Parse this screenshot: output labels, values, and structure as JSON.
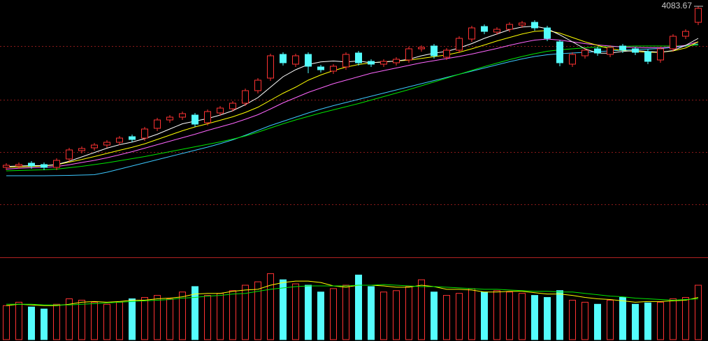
{
  "chart_data": {
    "type": "candlestick",
    "open": [
      3160,
      3168,
      3184,
      3176,
      3160,
      3208,
      3256,
      3272,
      3288,
      3304,
      3336,
      3328,
      3384,
      3432,
      3448,
      3460,
      3416,
      3472,
      3496,
      3528,
      3600,
      3672,
      3808,
      3752,
      3808,
      3736,
      3712,
      3736,
      3816,
      3768,
      3752,
      3760,
      3776,
      3840,
      3856,
      3792,
      3832,
      3896,
      3968,
      3936,
      3952,
      3976,
      3992,
      3960,
      3880,
      3752,
      3800,
      3840,
      3808,
      3856,
      3840,
      3824,
      3776,
      3840,
      3912,
      3992
    ],
    "high": [
      3184,
      3188,
      3196,
      3188,
      3212,
      3272,
      3280,
      3300,
      3316,
      3340,
      3348,
      3392,
      3444,
      3460,
      3480,
      3472,
      3492,
      3512,
      3540,
      3612,
      3672,
      3812,
      3820,
      3812,
      3820,
      3748,
      3752,
      3820,
      3828,
      3780,
      3780,
      3792,
      3852,
      3860,
      3868,
      3844,
      3912,
      3972,
      3980,
      3964,
      3992,
      4000,
      4004,
      3972,
      3892,
      3820,
      3844,
      3852,
      3860,
      3868,
      3852,
      3836,
      3852,
      3924,
      3952,
      4083.67
    ],
    "low": [
      3144,
      3152,
      3152,
      3144,
      3144,
      3192,
      3240,
      3256,
      3272,
      3288,
      3304,
      3312,
      3368,
      3416,
      3432,
      3392,
      3400,
      3456,
      3480,
      3512,
      3584,
      3656,
      3744,
      3736,
      3700,
      3704,
      3696,
      3720,
      3744,
      3736,
      3736,
      3744,
      3760,
      3824,
      3784,
      3776,
      3816,
      3880,
      3924,
      3920,
      3936,
      3960,
      3944,
      3884,
      3740,
      3736,
      3784,
      3800,
      3792,
      3816,
      3804,
      3752,
      3760,
      3824,
      3896,
      3976
    ],
    "close": [
      3172,
      3176,
      3168,
      3160,
      3200,
      3260,
      3268,
      3288,
      3304,
      3328,
      3320,
      3380,
      3432,
      3448,
      3468,
      3408,
      3480,
      3500,
      3528,
      3600,
      3660,
      3800,
      3760,
      3800,
      3740,
      3720,
      3740,
      3808,
      3760,
      3752,
      3768,
      3780,
      3840,
      3848,
      3800,
      3832,
      3900,
      3960,
      3940,
      3952,
      3980,
      3988,
      3960,
      3900,
      3760,
      3808,
      3832,
      3816,
      3848,
      3832,
      3820,
      3768,
      3840,
      3912,
      3940,
      4072
    ],
    "ylim": [
      2660,
      4120
    ],
    "up_color": "#ff3232",
    "down_color": "#54fcfc",
    "lines": [
      {
        "color": "#ffffff",
        "values": [
          3165,
          3168,
          3170,
          3170,
          3176,
          3195,
          3220,
          3245,
          3270,
          3290,
          3305,
          3325,
          3350,
          3380,
          3410,
          3425,
          3440,
          3460,
          3485,
          3520,
          3560,
          3620,
          3680,
          3720,
          3750,
          3765,
          3770,
          3765,
          3770,
          3760,
          3765,
          3770,
          3780,
          3800,
          3815,
          3825,
          3845,
          3870,
          3900,
          3925,
          3950,
          3965,
          3970,
          3955,
          3920,
          3880,
          3840,
          3815,
          3815,
          3825,
          3830,
          3825,
          3820,
          3830,
          3860,
          3900
        ]
      },
      {
        "color": "#ffff00",
        "values": [
          3160,
          3162,
          3165,
          3168,
          3175,
          3190,
          3205,
          3222,
          3240,
          3258,
          3275,
          3295,
          3320,
          3345,
          3370,
          3392,
          3410,
          3430,
          3450,
          3475,
          3505,
          3545,
          3585,
          3620,
          3660,
          3690,
          3715,
          3735,
          3750,
          3760,
          3765,
          3770,
          3775,
          3785,
          3795,
          3805,
          3820,
          3840,
          3862,
          3885,
          3905,
          3925,
          3940,
          3945,
          3930,
          3905,
          3880,
          3860,
          3840,
          3830,
          3825,
          3820,
          3820,
          3828,
          3845,
          3880
        ]
      },
      {
        "color": "#ff66ff",
        "values": [
          3150,
          3155,
          3158,
          3160,
          3165,
          3175,
          3188,
          3200,
          3215,
          3232,
          3250,
          3270,
          3290,
          3310,
          3330,
          3350,
          3372,
          3392,
          3412,
          3436,
          3462,
          3495,
          3530,
          3560,
          3590,
          3615,
          3640,
          3660,
          3680,
          3700,
          3715,
          3730,
          3745,
          3760,
          3772,
          3784,
          3796,
          3810,
          3826,
          3842,
          3860,
          3876,
          3890,
          3896,
          3890,
          3880,
          3870,
          3862,
          3856,
          3850,
          3848,
          3846,
          3846,
          3850,
          3860,
          3880
        ]
      },
      {
        "color": "#00e600",
        "values": [
          3140,
          3142,
          3144,
          3146,
          3150,
          3158,
          3166,
          3176,
          3186,
          3198,
          3210,
          3222,
          3236,
          3250,
          3264,
          3278,
          3292,
          3306,
          3322,
          3340,
          3362,
          3386,
          3410,
          3432,
          3452,
          3472,
          3490,
          3508,
          3526,
          3546,
          3566,
          3586,
          3606,
          3628,
          3650,
          3672,
          3694,
          3716,
          3738,
          3758,
          3778,
          3796,
          3812,
          3826,
          3834,
          3840,
          3846,
          3850,
          3852,
          3854,
          3856,
          3856,
          3856,
          3856,
          3858,
          3862
        ]
      },
      {
        "color": "#3cc8ff",
        "values": [
          3112,
          3112,
          3112,
          3112,
          3113,
          3114,
          3116,
          3118,
          3132,
          3150,
          3168,
          3186,
          3204,
          3222,
          3240,
          3258,
          3276,
          3296,
          3318,
          3344,
          3372,
          3400,
          3424,
          3448,
          3472,
          3494,
          3514,
          3532,
          3550,
          3568,
          3586,
          3604,
          3622,
          3640,
          3658,
          3676,
          3694,
          3712,
          3730,
          3748,
          3766,
          3782,
          3796,
          3806,
          3812,
          3816,
          3820,
          3824,
          3828,
          3832,
          3836,
          3838,
          3842,
          3848,
          3856,
          3868
        ]
      }
    ],
    "volume": {
      "ylim": [
        0,
        120
      ],
      "values": [
        50,
        55,
        48,
        45,
        52,
        60,
        58,
        55,
        52,
        55,
        60,
        62,
        65,
        60,
        70,
        78,
        65,
        68,
        72,
        80,
        85,
        97,
        88,
        82,
        80,
        70,
        75,
        80,
        95,
        78,
        70,
        72,
        78,
        88,
        70,
        65,
        68,
        75,
        70,
        72,
        70,
        68,
        65,
        62,
        72,
        58,
        55,
        52,
        58,
        62,
        52,
        54,
        55,
        60,
        62,
        80
      ],
      "lines": [
        {
          "color": "#ffff00",
          "values": [
            50,
            52,
            51,
            50,
            50,
            52,
            55,
            56,
            55,
            56,
            58,
            58,
            60,
            61,
            63,
            67,
            68,
            68,
            71,
            73,
            74,
            80,
            84,
            86,
            86,
            84,
            79,
            77,
            80,
            80,
            79,
            77,
            77,
            80,
            78,
            74,
            74,
            73,
            70,
            70,
            71,
            71,
            69,
            67,
            67,
            65,
            62,
            60,
            59,
            57,
            55,
            56,
            56,
            57,
            58,
            62
          ]
        },
        {
          "color": "#00e600",
          "values": [
            52,
            52,
            52,
            51,
            51,
            51,
            52,
            53,
            54,
            55,
            56,
            57,
            58,
            59,
            61,
            62,
            64,
            65,
            67,
            68,
            71,
            74,
            76,
            78,
            79,
            79,
            79,
            79,
            80,
            80,
            81,
            80,
            79,
            78,
            78,
            77,
            76,
            75,
            74,
            74,
            73,
            72,
            71,
            71,
            70,
            70,
            68,
            66,
            64,
            63,
            61,
            60,
            59,
            58,
            59,
            60
          ]
        }
      ]
    }
  }
}
